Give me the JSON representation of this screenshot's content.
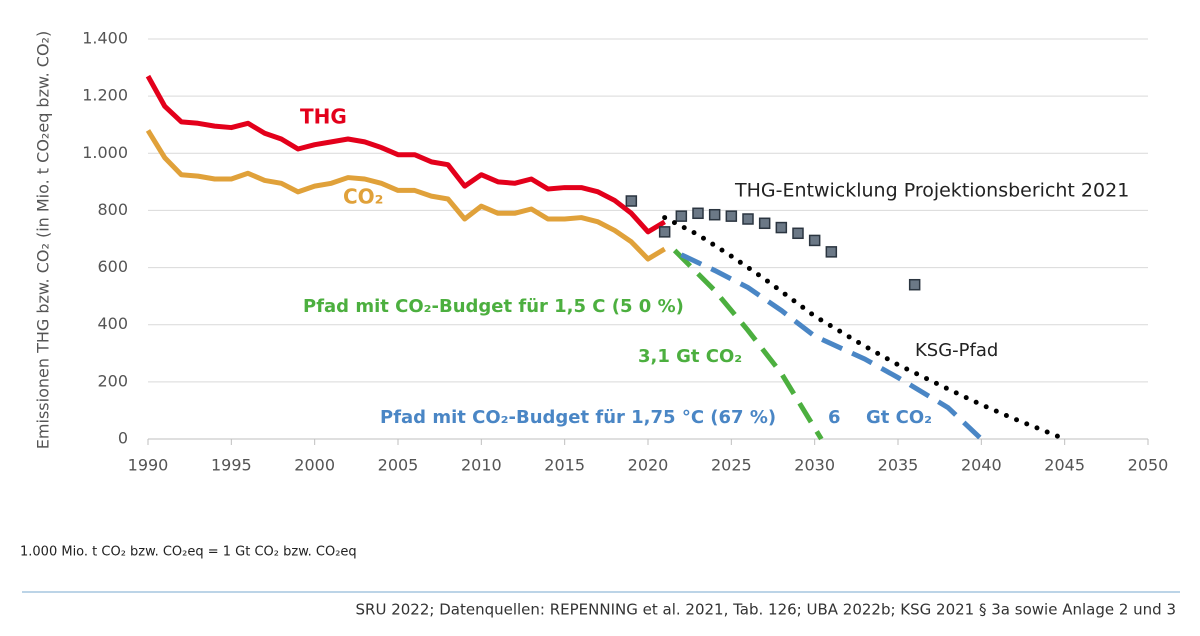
{
  "chart_data": {
    "type": "line",
    "ylabel": "Emissionen THG bzw. CO₂ (in Mio. t CO₂eq bzw. CO₂)",
    "xlim": [
      1990,
      2050
    ],
    "xticks": [
      1990,
      1995,
      2000,
      2005,
      2010,
      2015,
      2020,
      2025,
      2030,
      2035,
      2040,
      2045,
      2050
    ],
    "ylim": [
      0,
      1400
    ],
    "yticks": [
      0,
      200,
      400,
      600,
      800,
      {
        "value": 1000,
        "label": "1.000"
      },
      {
        "value": 1200,
        "label": "1.200"
      },
      {
        "value": 1400,
        "label": "1.400"
      }
    ],
    "grid": true,
    "series": [
      {
        "style": "solid",
        "color": "#e3001b",
        "x": [
          1990,
          1991,
          1992,
          1993,
          1994,
          1995,
          1996,
          1997,
          1998,
          1999,
          2000,
          2001,
          2002,
          2003,
          2004,
          2005,
          2006,
          2007,
          2008,
          2009,
          2010,
          2011,
          2012,
          2013,
          2014,
          2015,
          2016,
          2017,
          2018,
          2019,
          2020,
          2021
        ],
        "values": [
          1270,
          1165,
          1110,
          1105,
          1095,
          1090,
          1105,
          1070,
          1050,
          1015,
          1030,
          1040,
          1050,
          1040,
          1020,
          995,
          995,
          970,
          960,
          885,
          925,
          900,
          895,
          910,
          875,
          880,
          880,
          865,
          835,
          790,
          725,
          760
        ]
      },
      {
        "style": "solid",
        "color": "#e0a13a",
        "x": [
          1990,
          1991,
          1992,
          1993,
          1994,
          1995,
          1996,
          1997,
          1998,
          1999,
          2000,
          2001,
          2002,
          2003,
          2004,
          2005,
          2006,
          2007,
          2008,
          2009,
          2010,
          2011,
          2012,
          2013,
          2014,
          2015,
          2016,
          2017,
          2018,
          2019,
          2020,
          2021
        ],
        "values": [
          1080,
          985,
          925,
          920,
          910,
          910,
          930,
          905,
          895,
          865,
          885,
          895,
          915,
          910,
          895,
          870,
          870,
          850,
          840,
          770,
          815,
          790,
          790,
          805,
          770,
          770,
          775,
          760,
          730,
          690,
          630,
          665
        ]
      },
      {
        "style": "markers",
        "color": "#6b7886",
        "x": [
          2019,
          2021,
          2022,
          2023,
          2024,
          2025,
          2026,
          2027,
          2028,
          2029,
          2030,
          2031,
          2036
        ],
        "values": [
          833,
          725,
          780,
          790,
          785,
          780,
          770,
          755,
          740,
          720,
          695,
          655,
          540
        ]
      },
      {
        "style": "dotted",
        "color": "#000000",
        "x": [
          2021,
          2023,
          2025,
          2027,
          2030,
          2033,
          2035,
          2038,
          2040,
          2042,
          2045
        ],
        "values": [
          775,
          715,
          640,
          560,
          430,
          325,
          260,
          175,
          120,
          70,
          0
        ]
      },
      {
        "style": "dashed",
        "color": "#4caf3f",
        "x": [
          2021.6,
          2024,
          2026,
          2028,
          2030.4
        ],
        "values": [
          660,
          520,
          380,
          230,
          0
        ]
      },
      {
        "style": "dashed",
        "color": "#4a86c5",
        "x": [
          2022,
          2024,
          2026,
          2028,
          2030,
          2033,
          2035,
          2038,
          2040
        ],
        "values": [
          645,
          590,
          530,
          450,
          360,
          280,
          215,
          110,
          0
        ]
      }
    ],
    "annotations": [
      {
        "text": "THG",
        "color": "#e3001b"
      },
      {
        "text": "CO₂",
        "color": "#e0a13a"
      },
      {
        "text": "THG-Entwicklung Projektionsbericht 2021",
        "color": "#222222"
      },
      {
        "text": "Pfad mit CO₂-Budget für 1,5  C (5 0 %)",
        "color": "#4caf3f"
      },
      {
        "text": "3,1 Gt CO₂",
        "color": "#4caf3f"
      },
      {
        "text": "KSG-Pfad",
        "color": "#222222"
      },
      {
        "text": "Pfad mit CO₂-Budget für 1,75 °C (67 %)",
        "color": "#4a86c5"
      },
      {
        "text": "6",
        "color": "#4a86c5"
      },
      {
        "text": "Gt CO₂",
        "color": "#4a86c5"
      }
    ],
    "note": "1.000 Mio. t CO₂ bzw. CO₂eq = 1 Gt CO₂ bzw. CO₂eq",
    "source": "SRU 2022; Datenquellen: REPENNING et al. 2021, Tab. 126; UBA 2022b; KSG 2021 § 3a sowie Anlage 2 und 3"
  }
}
